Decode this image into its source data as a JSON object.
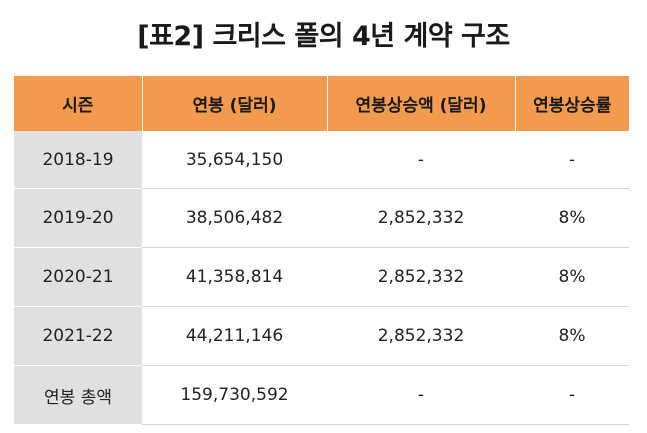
{
  "title": "[표2] 크리스 폴의 4년 계약 구조",
  "table": {
    "headers": [
      "시즌",
      "연봉 (달러)",
      "연봉상승액 (달러)",
      "연봉상승률"
    ],
    "rows": [
      {
        "season": "2018-19",
        "salary": "35,654,150",
        "raise": "-",
        "rate": "-"
      },
      {
        "season": "2019-20",
        "salary": "38,506,482",
        "raise": "2,852,332",
        "rate": "8%"
      },
      {
        "season": "2020-21",
        "salary": "41,358,814",
        "raise": "2,852,332",
        "rate": "8%"
      },
      {
        "season": "2021-22",
        "salary": "44,211,146",
        "raise": "2,852,332",
        "rate": "8%"
      },
      {
        "season": "연봉 총액",
        "salary": "159,730,592",
        "raise": "-",
        "rate": "-"
      }
    ]
  },
  "colors": {
    "header_background": "#f29a4e",
    "season_column_background": "#e0e0e0"
  }
}
